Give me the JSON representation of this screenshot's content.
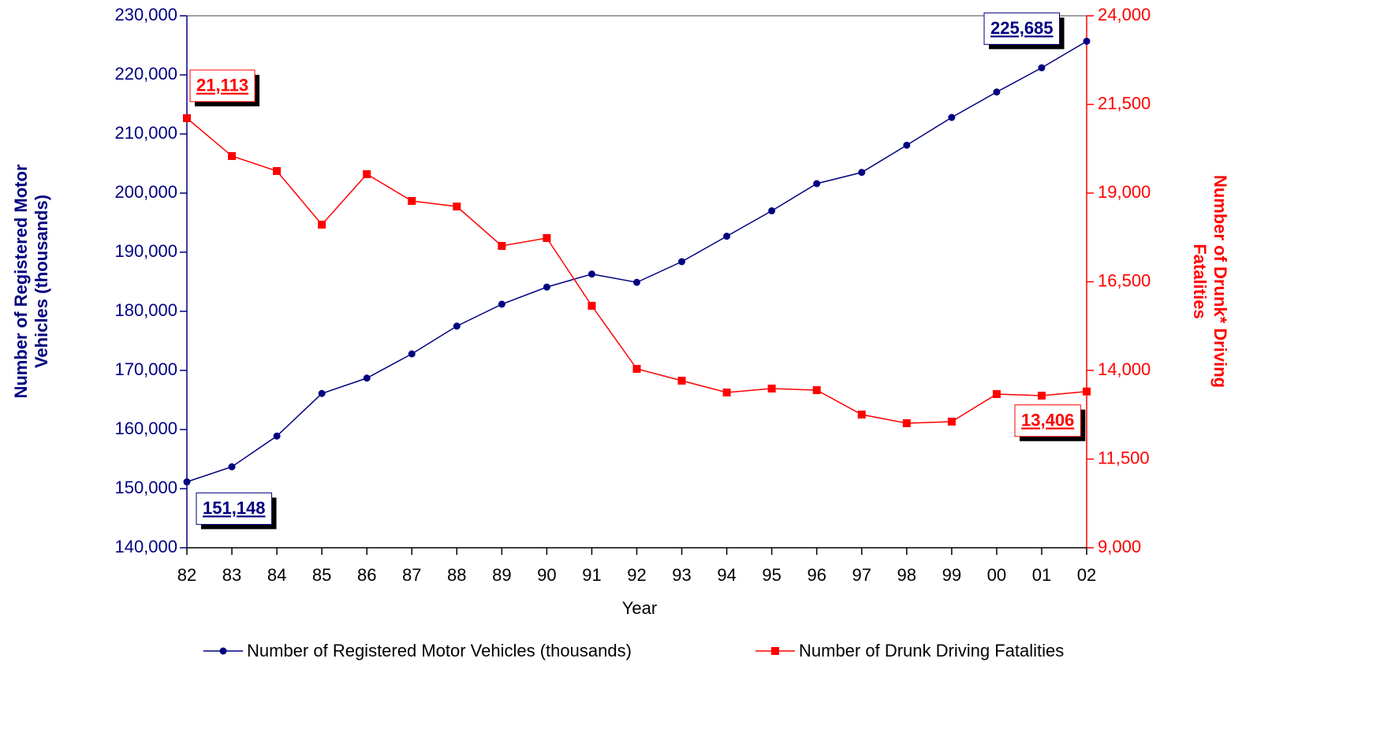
{
  "chart_data": {
    "type": "line",
    "xlabel": "Year",
    "ylabel": [
      "Number of Registered Motor",
      "Vehicles (thousands)"
    ],
    "y2label": [
      "Number of Drunk* Driving",
      "Fatalities"
    ],
    "categories": [
      "82",
      "83",
      "84",
      "85",
      "86",
      "87",
      "88",
      "89",
      "90",
      "91",
      "92",
      "93",
      "94",
      "95",
      "96",
      "97",
      "98",
      "99",
      "00",
      "01",
      "02"
    ],
    "series": [
      {
        "name": "Number of Registered Motor Vehicles (thousands)",
        "color": "#000080",
        "marker": "circle",
        "values": [
          151148,
          153700,
          158900,
          166100,
          168700,
          172800,
          177500,
          181200,
          184100,
          186300,
          184900,
          188400,
          192700,
          197000,
          201600,
          203500,
          208100,
          212800,
          217100,
          221200,
          225685
        ],
        "value_labels": [
          "151,148",
          null,
          null,
          null,
          null,
          null,
          null,
          null,
          null,
          null,
          null,
          null,
          null,
          null,
          null,
          null,
          null,
          null,
          null,
          null,
          "225,685"
        ]
      },
      {
        "name": "Number of Drunk Driving Fatalities",
        "color": "#ff0000",
        "marker": "square",
        "axis": "y2",
        "values": [
          21113,
          20044,
          19622,
          18111,
          19533,
          18778,
          18622,
          17511,
          17733,
          15822,
          14044,
          13711,
          13378,
          13489,
          13444,
          12756,
          12511,
          12556,
          13333,
          13289,
          13406
        ],
        "value_labels": [
          "21,113",
          null,
          null,
          null,
          null,
          null,
          null,
          null,
          null,
          null,
          null,
          null,
          null,
          null,
          null,
          null,
          null,
          null,
          null,
          null,
          "13,406"
        ]
      }
    ],
    "ylim": [
      140000,
      230000
    ],
    "yticks": [
      {
        "value": 140000,
        "label": "140,000"
      },
      {
        "value": 150000,
        "label": "150,000"
      },
      {
        "value": 160000,
        "label": "160,000"
      },
      {
        "value": 170000,
        "label": "170,000"
      },
      {
        "value": 180000,
        "label": "180,000"
      },
      {
        "value": 190000,
        "label": "190,000"
      },
      {
        "value": 200000,
        "label": "200,000"
      },
      {
        "value": 210000,
        "label": "210,000"
      },
      {
        "value": 220000,
        "label": "220,000"
      },
      {
        "value": 230000,
        "label": "230,000"
      }
    ],
    "y2lim": [
      9000,
      24000
    ],
    "y2ticks": [
      {
        "value": 9000,
        "label": "9,000"
      },
      {
        "value": 11500,
        "label": "11,500"
      },
      {
        "value": 14000,
        "label": "14,000"
      },
      {
        "value": 16500,
        "label": "16,500"
      },
      {
        "value": 19000,
        "label": "19,000"
      },
      {
        "value": 21500,
        "label": "21,500"
      },
      {
        "value": 24000,
        "label": "24,000"
      }
    ],
    "legend": "bottom"
  }
}
